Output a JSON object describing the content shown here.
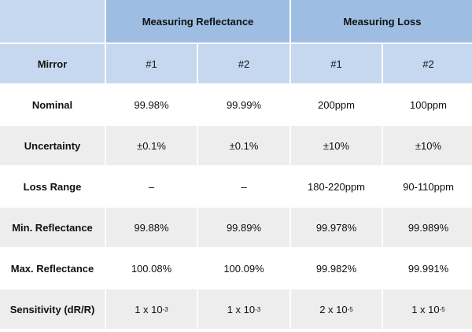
{
  "header": {
    "groups": [
      "Measuring Reflectance",
      "Measuring Loss"
    ]
  },
  "table": {
    "columns": [
      "Mirror",
      "#1",
      "#2",
      "#1",
      "#2"
    ],
    "rows": [
      [
        "Nominal",
        "99.98%",
        "99.99%",
        "200ppm",
        "100ppm"
      ],
      [
        "Uncertainty",
        "±0.1%",
        "±0.1%",
        "±10%",
        "±10%"
      ],
      [
        "Loss Range",
        "–",
        "–",
        "180-220ppm",
        "90-110ppm"
      ],
      [
        "Min. Reflectance",
        "99.88%",
        "99.89%",
        "99.978%",
        "99.989%"
      ],
      [
        "Max. Reflectance",
        "100.08%",
        "100.09%",
        "99.982%",
        "99.991%"
      ],
      [
        "Sensitivity (dR/R)",
        {
          "base": "1 x 10",
          "exp": "-3"
        },
        {
          "base": "1 x 10",
          "exp": "-3"
        },
        {
          "base": "2 x 10",
          "exp": "-5"
        },
        {
          "base": "1 x 10",
          "exp": "-5"
        }
      ]
    ]
  }
}
